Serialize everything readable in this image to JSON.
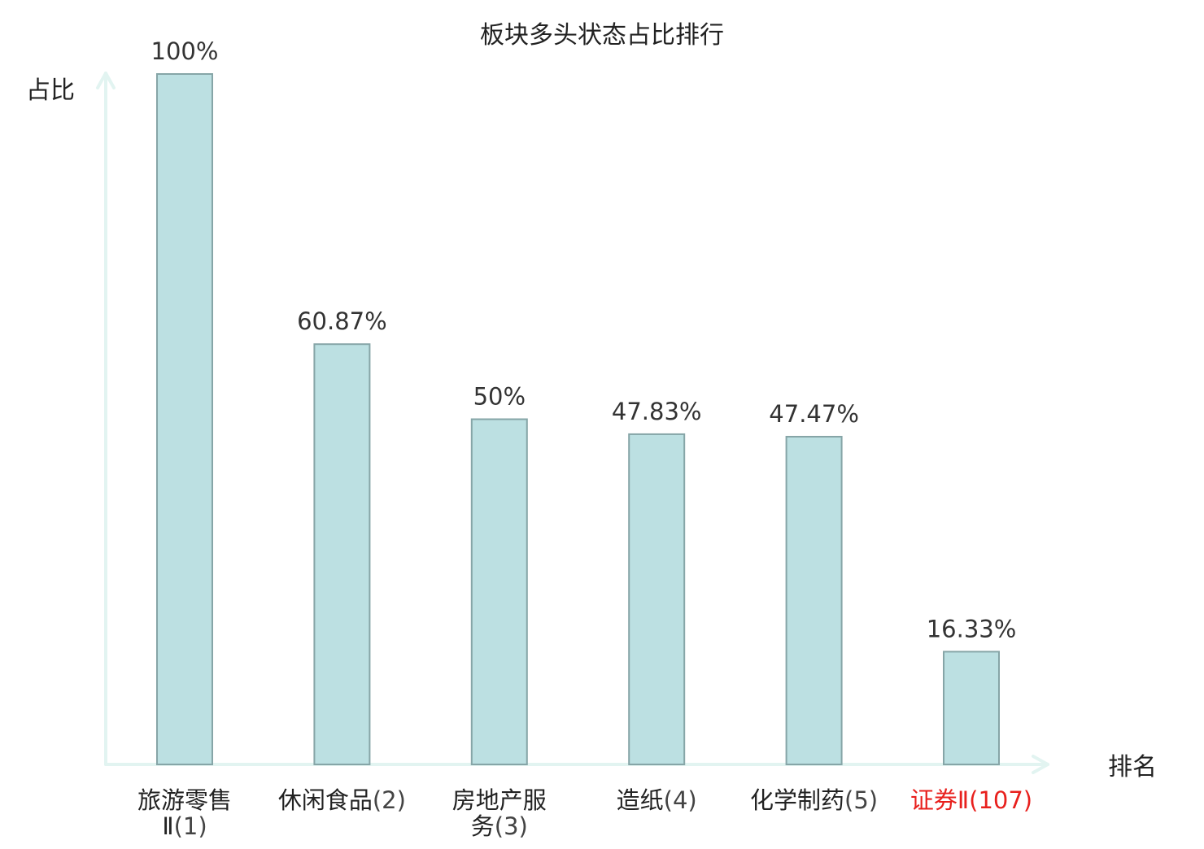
{
  "chart_data": {
    "type": "bar",
    "title": "板块多头状态占比排行",
    "ylabel": "占比",
    "xlabel": "排名",
    "ylim": [
      0,
      100
    ],
    "grid": false,
    "categories": [
      {
        "name": "旅游零售Ⅱ",
        "rank": "(1)",
        "highlight": false
      },
      {
        "name": "休闲食品",
        "rank": "(2)",
        "highlight": false
      },
      {
        "name": "房地产服务",
        "rank": "(3)",
        "highlight": false
      },
      {
        "name": "造纸",
        "rank": "(4)",
        "highlight": false
      },
      {
        "name": "化学制药",
        "rank": "(5)",
        "highlight": false
      },
      {
        "name": "证券Ⅱ",
        "rank": "(107)",
        "highlight": true
      }
    ],
    "values": [
      100,
      60.87,
      50,
      47.83,
      47.47,
      16.33
    ],
    "value_labels": [
      "100%",
      "60.87%",
      "50%",
      "47.83%",
      "47.47%",
      "16.33%"
    ],
    "colors": {
      "bar_fill": "#bce0e2",
      "bar_stroke": "#86a5a7",
      "axis": "#e2f4f1",
      "text": "#222222",
      "rank_text": "#444444",
      "highlight": "#e8201d"
    }
  }
}
